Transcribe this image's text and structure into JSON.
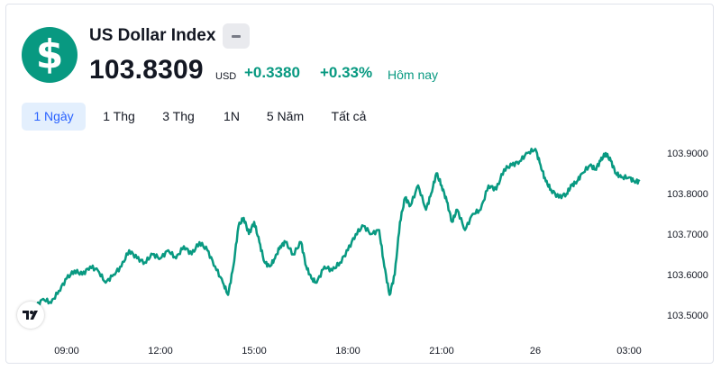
{
  "header": {
    "title": "US Dollar Index",
    "price": "103.8309",
    "currency": "USD",
    "change": "+0.3380",
    "change_percent": "+0.33%",
    "period": "Hôm nay",
    "logo_icon": "dollar-sign-icon",
    "minus_icon": "minus-icon"
  },
  "tabs": [
    {
      "label": "1 Ngày",
      "active": true
    },
    {
      "label": "1 Thg",
      "active": false
    },
    {
      "label": "3 Thg",
      "active": false
    },
    {
      "label": "1N",
      "active": false
    },
    {
      "label": "5 Năm",
      "active": false
    },
    {
      "label": "Tất cả",
      "active": false
    }
  ],
  "colors": {
    "accent": "#089981",
    "active_tab_bg": "#e3effd",
    "active_tab_text": "#2962ff"
  },
  "chart_data": {
    "type": "line",
    "y_ticks": [
      "103.9000",
      "103.8000",
      "103.7000",
      "103.6000",
      "103.5000"
    ],
    "x_ticks": [
      "09:00",
      "12:00",
      "15:00",
      "18:00",
      "21:00",
      "26",
      "03:00"
    ],
    "ylim": [
      103.48,
      103.93
    ],
    "series": [
      {
        "color": "#089981",
        "points": [
          [
            "07:40",
            103.51
          ],
          [
            "08:00",
            103.52
          ],
          [
            "08:15",
            103.54
          ],
          [
            "08:30",
            103.53
          ],
          [
            "08:45",
            103.56
          ],
          [
            "09:00",
            103.59
          ],
          [
            "09:15",
            103.61
          ],
          [
            "09:30",
            103.6
          ],
          [
            "09:45",
            103.62
          ],
          [
            "10:00",
            103.61
          ],
          [
            "10:15",
            103.58
          ],
          [
            "10:30",
            103.6
          ],
          [
            "10:45",
            103.62
          ],
          [
            "11:00",
            103.66
          ],
          [
            "11:15",
            103.64
          ],
          [
            "11:30",
            103.63
          ],
          [
            "11:45",
            103.65
          ],
          [
            "12:00",
            103.64
          ],
          [
            "12:15",
            103.66
          ],
          [
            "12:30",
            103.64
          ],
          [
            "12:45",
            103.67
          ],
          [
            "13:00",
            103.65
          ],
          [
            "13:15",
            103.68
          ],
          [
            "13:30",
            103.66
          ],
          [
            "13:45",
            103.62
          ],
          [
            "14:00",
            103.58
          ],
          [
            "14:10",
            103.55
          ],
          [
            "14:20",
            103.62
          ],
          [
            "14:30",
            103.72
          ],
          [
            "14:40",
            103.74
          ],
          [
            "14:50",
            103.7
          ],
          [
            "15:00",
            103.73
          ],
          [
            "15:10",
            103.68
          ],
          [
            "15:20",
            103.63
          ],
          [
            "15:30",
            103.62
          ],
          [
            "15:40",
            103.64
          ],
          [
            "15:50",
            103.67
          ],
          [
            "16:00",
            103.68
          ],
          [
            "16:15",
            103.65
          ],
          [
            "16:30",
            103.68
          ],
          [
            "16:40",
            103.62
          ],
          [
            "16:50",
            103.59
          ],
          [
            "17:00",
            103.58
          ],
          [
            "17:15",
            103.62
          ],
          [
            "17:30",
            103.61
          ],
          [
            "17:45",
            103.63
          ],
          [
            "18:00",
            103.66
          ],
          [
            "18:15",
            103.7
          ],
          [
            "18:30",
            103.72
          ],
          [
            "18:45",
            103.7
          ],
          [
            "19:00",
            103.71
          ],
          [
            "19:10",
            103.62
          ],
          [
            "19:20",
            103.55
          ],
          [
            "19:30",
            103.6
          ],
          [
            "19:40",
            103.73
          ],
          [
            "19:50",
            103.79
          ],
          [
            "20:00",
            103.77
          ],
          [
            "20:15",
            103.82
          ],
          [
            "20:30",
            103.76
          ],
          [
            "20:40",
            103.8
          ],
          [
            "20:50",
            103.85
          ],
          [
            "21:00",
            103.82
          ],
          [
            "21:10",
            103.78
          ],
          [
            "21:20",
            103.73
          ],
          [
            "21:30",
            103.76
          ],
          [
            "21:45",
            103.71
          ],
          [
            "22:00",
            103.75
          ],
          [
            "22:15",
            103.76
          ],
          [
            "22:30",
            103.82
          ],
          [
            "22:45",
            103.81
          ],
          [
            "23:00",
            103.86
          ],
          [
            "23:15",
            103.87
          ],
          [
            "23:30",
            103.88
          ],
          [
            "23:45",
            103.9
          ],
          [
            "00:00",
            103.91
          ],
          [
            "00:10",
            103.87
          ],
          [
            "00:20",
            103.83
          ],
          [
            "00:30",
            103.81
          ],
          [
            "00:45",
            103.79
          ],
          [
            "01:00",
            103.8
          ],
          [
            "01:10",
            103.82
          ],
          [
            "01:20",
            103.83
          ],
          [
            "01:30",
            103.85
          ],
          [
            "01:45",
            103.87
          ],
          [
            "01:55",
            103.86
          ],
          [
            "02:05",
            103.88
          ],
          [
            "02:15",
            103.9
          ],
          [
            "02:25",
            103.88
          ],
          [
            "02:35",
            103.85
          ],
          [
            "02:45",
            103.84
          ],
          [
            "03:00",
            103.84
          ],
          [
            "03:10",
            103.83
          ],
          [
            "03:20",
            103.83
          ]
        ]
      }
    ]
  }
}
